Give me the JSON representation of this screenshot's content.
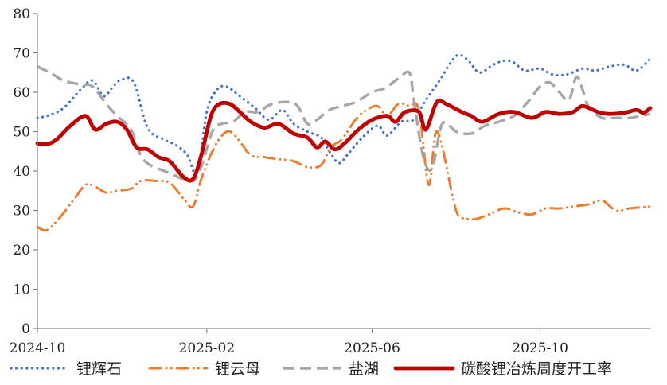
{
  "chart_data": {
    "type": "line",
    "title": "",
    "xlabel": "",
    "ylabel": "",
    "ylim": [
      0,
      80
    ],
    "yticks": [
      0,
      10,
      20,
      30,
      40,
      50,
      60,
      70,
      80
    ],
    "xlim": [
      "2024-10-01",
      "2025-12-20"
    ],
    "xticks": [
      "2024-10",
      "2025-02",
      "2025-06",
      "2025-10"
    ],
    "grid": false,
    "legend_position": "bottom",
    "series": [
      {
        "name": "锂辉石",
        "color": "#4472c4",
        "style": "dotted",
        "points": [
          [
            "2024-10-01",
            53.5
          ],
          [
            "2024-10-10",
            54.2
          ],
          [
            "2024-10-20",
            56.0
          ],
          [
            "2024-11-01",
            60.5
          ],
          [
            "2024-11-10",
            63.0
          ],
          [
            "2024-11-18",
            59.0
          ],
          [
            "2024-11-25",
            61.5
          ],
          [
            "2024-12-01",
            63.2
          ],
          [
            "2024-12-10",
            62.5
          ],
          [
            "2024-12-20",
            51.0
          ],
          [
            "2025-01-01",
            48.0
          ],
          [
            "2025-01-10",
            46.5
          ],
          [
            "2025-01-18",
            44.0
          ],
          [
            "2025-01-25",
            39.5
          ],
          [
            "2025-02-01",
            55.0
          ],
          [
            "2025-02-08",
            60.5
          ],
          [
            "2025-02-15",
            61.5
          ],
          [
            "2025-02-25",
            59.0
          ],
          [
            "2025-03-08",
            56.0
          ],
          [
            "2025-03-18",
            53.0
          ],
          [
            "2025-03-28",
            55.5
          ],
          [
            "2025-04-05",
            52.0
          ],
          [
            "2025-04-15",
            50.0
          ],
          [
            "2025-04-25",
            48.5
          ],
          [
            "2025-05-01",
            45.0
          ],
          [
            "2025-05-08",
            42.0
          ],
          [
            "2025-05-15",
            44.5
          ],
          [
            "2025-05-25",
            48.5
          ],
          [
            "2025-06-05",
            51.5
          ],
          [
            "2025-06-12",
            49.0
          ],
          [
            "2025-06-22",
            52.5
          ],
          [
            "2025-07-01",
            53.0
          ],
          [
            "2025-07-10",
            58.0
          ],
          [
            "2025-07-20",
            63.0
          ],
          [
            "2025-07-28",
            67.5
          ],
          [
            "2025-08-03",
            69.5
          ],
          [
            "2025-08-10",
            68.0
          ],
          [
            "2025-08-18",
            65.0
          ],
          [
            "2025-08-28",
            67.0
          ],
          [
            "2025-09-05",
            68.0
          ],
          [
            "2025-09-12",
            67.5
          ],
          [
            "2025-09-20",
            65.5
          ],
          [
            "2025-10-01",
            66.0
          ],
          [
            "2025-10-10",
            64.5
          ],
          [
            "2025-10-20",
            64.5
          ],
          [
            "2025-11-01",
            66.0
          ],
          [
            "2025-11-10",
            65.5
          ],
          [
            "2025-11-20",
            66.5
          ],
          [
            "2025-12-01",
            67.0
          ],
          [
            "2025-12-10",
            65.5
          ],
          [
            "2025-12-20",
            68.5
          ]
        ]
      },
      {
        "name": "锂云母",
        "color": "#ed7d31",
        "style": "dash-dot-dot",
        "points": [
          [
            "2024-10-01",
            25.8
          ],
          [
            "2024-10-08",
            25.0
          ],
          [
            "2024-10-18",
            28.5
          ],
          [
            "2024-10-28",
            33.0
          ],
          [
            "2024-11-05",
            36.5
          ],
          [
            "2024-11-12",
            36.0
          ],
          [
            "2024-11-20",
            34.5
          ],
          [
            "2024-11-28",
            35.0
          ],
          [
            "2024-12-08",
            35.5
          ],
          [
            "2024-12-15",
            37.5
          ],
          [
            "2024-12-25",
            37.5
          ],
          [
            "2025-01-05",
            37.0
          ],
          [
            "2025-01-15",
            33.0
          ],
          [
            "2025-01-22",
            31.0
          ],
          [
            "2025-01-28",
            38.0
          ],
          [
            "2025-02-05",
            45.0
          ],
          [
            "2025-02-12",
            49.0
          ],
          [
            "2025-02-18",
            50.0
          ],
          [
            "2025-02-25",
            47.5
          ],
          [
            "2025-03-05",
            44.0
          ],
          [
            "2025-03-15",
            43.5
          ],
          [
            "2025-03-25",
            43.0
          ],
          [
            "2025-04-05",
            42.5
          ],
          [
            "2025-04-15",
            41.0
          ],
          [
            "2025-04-25",
            41.5
          ],
          [
            "2025-05-02",
            46.0
          ],
          [
            "2025-05-10",
            48.0
          ],
          [
            "2025-05-20",
            53.0
          ],
          [
            "2025-05-28",
            55.5
          ],
          [
            "2025-06-05",
            56.5
          ],
          [
            "2025-06-12",
            54.0
          ],
          [
            "2025-06-20",
            57.0
          ],
          [
            "2025-06-28",
            56.5
          ],
          [
            "2025-07-05",
            55.5
          ],
          [
            "2025-07-12",
            36.5
          ],
          [
            "2025-07-17",
            49.5
          ],
          [
            "2025-07-22",
            46.0
          ],
          [
            "2025-08-01",
            30.0
          ],
          [
            "2025-08-08",
            28.0
          ],
          [
            "2025-08-15",
            27.8
          ],
          [
            "2025-08-25",
            29.0
          ],
          [
            "2025-09-05",
            30.5
          ],
          [
            "2025-09-15",
            29.5
          ],
          [
            "2025-09-25",
            29.0
          ],
          [
            "2025-10-05",
            30.5
          ],
          [
            "2025-10-15",
            30.5
          ],
          [
            "2025-10-25",
            31.0
          ],
          [
            "2025-11-05",
            31.5
          ],
          [
            "2025-11-15",
            32.5
          ],
          [
            "2025-11-25",
            30.0
          ],
          [
            "2025-12-05",
            30.5
          ],
          [
            "2025-12-20",
            31.0
          ]
        ]
      },
      {
        "name": "盐湖",
        "color": "#a6a6a6",
        "style": "dashed",
        "points": [
          [
            "2024-10-01",
            66.5
          ],
          [
            "2024-10-10",
            65.0
          ],
          [
            "2024-10-20",
            63.0
          ],
          [
            "2024-11-01",
            62.0
          ],
          [
            "2024-11-10",
            61.5
          ],
          [
            "2024-11-20",
            57.0
          ],
          [
            "2024-11-28",
            54.0
          ],
          [
            "2024-12-08",
            50.5
          ],
          [
            "2024-12-15",
            44.0
          ],
          [
            "2024-12-22",
            41.5
          ],
          [
            "2025-01-05",
            39.5
          ],
          [
            "2025-01-15",
            38.0
          ],
          [
            "2025-01-25",
            38.5
          ],
          [
            "2025-02-05",
            50.0
          ],
          [
            "2025-02-12",
            52.0
          ],
          [
            "2025-02-20",
            52.5
          ],
          [
            "2025-03-01",
            55.0
          ],
          [
            "2025-03-10",
            55.0
          ],
          [
            "2025-03-20",
            57.0
          ],
          [
            "2025-04-01",
            57.5
          ],
          [
            "2025-04-08",
            56.5
          ],
          [
            "2025-04-15",
            52.0
          ],
          [
            "2025-04-22",
            53.0
          ],
          [
            "2025-05-01",
            55.5
          ],
          [
            "2025-05-10",
            56.5
          ],
          [
            "2025-05-20",
            57.5
          ],
          [
            "2025-06-01",
            60.0
          ],
          [
            "2025-06-10",
            61.0
          ],
          [
            "2025-06-20",
            63.5
          ],
          [
            "2025-06-28",
            65.0
          ],
          [
            "2025-07-01",
            59.0
          ],
          [
            "2025-07-06",
            47.5
          ],
          [
            "2025-07-10",
            41.5
          ],
          [
            "2025-07-15",
            41.0
          ],
          [
            "2025-07-22",
            52.0
          ],
          [
            "2025-08-01",
            50.0
          ],
          [
            "2025-08-12",
            49.5
          ],
          [
            "2025-08-22",
            51.5
          ],
          [
            "2025-09-01",
            52.5
          ],
          [
            "2025-09-12",
            54.0
          ],
          [
            "2025-09-22",
            57.5
          ],
          [
            "2025-10-01",
            61.5
          ],
          [
            "2025-10-08",
            62.5
          ],
          [
            "2025-10-15",
            60.0
          ],
          [
            "2025-10-22",
            58.0
          ],
          [
            "2025-10-28",
            64.0
          ],
          [
            "2025-11-05",
            56.5
          ],
          [
            "2025-11-15",
            53.5
          ],
          [
            "2025-11-25",
            53.5
          ],
          [
            "2025-12-05",
            53.5
          ],
          [
            "2025-12-20",
            54.5
          ]
        ]
      },
      {
        "name": "碳酸锂冶炼周度开工率",
        "color": "#c00000",
        "style": "solid-thick",
        "points": [
          [
            "2024-10-01",
            47.0
          ],
          [
            "2024-10-08",
            46.8
          ],
          [
            "2024-10-15",
            48.0
          ],
          [
            "2024-10-25",
            51.5
          ],
          [
            "2024-11-05",
            54.0
          ],
          [
            "2024-11-12",
            50.5
          ],
          [
            "2024-11-20",
            52.0
          ],
          [
            "2024-11-28",
            52.5
          ],
          [
            "2024-12-05",
            50.5
          ],
          [
            "2024-12-12",
            46.0
          ],
          [
            "2024-12-20",
            45.5
          ],
          [
            "2024-12-28",
            43.5
          ],
          [
            "2025-01-05",
            42.5
          ],
          [
            "2025-01-15",
            38.5
          ],
          [
            "2025-01-22",
            38.0
          ],
          [
            "2025-01-28",
            44.0
          ],
          [
            "2025-02-04",
            54.0
          ],
          [
            "2025-02-10",
            57.0
          ],
          [
            "2025-02-18",
            57.0
          ],
          [
            "2025-02-25",
            55.0
          ],
          [
            "2025-03-05",
            52.5
          ],
          [
            "2025-03-15",
            51.0
          ],
          [
            "2025-03-25",
            52.0
          ],
          [
            "2025-04-05",
            49.5
          ],
          [
            "2025-04-15",
            48.5
          ],
          [
            "2025-04-22",
            46.0
          ],
          [
            "2025-04-28",
            47.5
          ],
          [
            "2025-05-05",
            45.5
          ],
          [
            "2025-05-12",
            47.0
          ],
          [
            "2025-05-22",
            50.5
          ],
          [
            "2025-06-01",
            53.0
          ],
          [
            "2025-06-12",
            54.0
          ],
          [
            "2025-06-18",
            52.5
          ],
          [
            "2025-06-25",
            55.0
          ],
          [
            "2025-07-05",
            55.0
          ],
          [
            "2025-07-10",
            50.5
          ],
          [
            "2025-07-18",
            57.5
          ],
          [
            "2025-07-25",
            57.0
          ],
          [
            "2025-08-05",
            55.0
          ],
          [
            "2025-08-12",
            54.0
          ],
          [
            "2025-08-20",
            52.5
          ],
          [
            "2025-09-01",
            54.5
          ],
          [
            "2025-09-12",
            55.0
          ],
          [
            "2025-09-25",
            53.5
          ],
          [
            "2025-10-05",
            55.0
          ],
          [
            "2025-10-15",
            54.5
          ],
          [
            "2025-10-25",
            55.0
          ],
          [
            "2025-11-01",
            56.5
          ],
          [
            "2025-11-12",
            55.0
          ],
          [
            "2025-11-20",
            54.5
          ],
          [
            "2025-12-01",
            54.8
          ],
          [
            "2025-12-10",
            55.5
          ],
          [
            "2025-12-15",
            54.8
          ],
          [
            "2025-12-20",
            56.0
          ]
        ]
      }
    ]
  }
}
